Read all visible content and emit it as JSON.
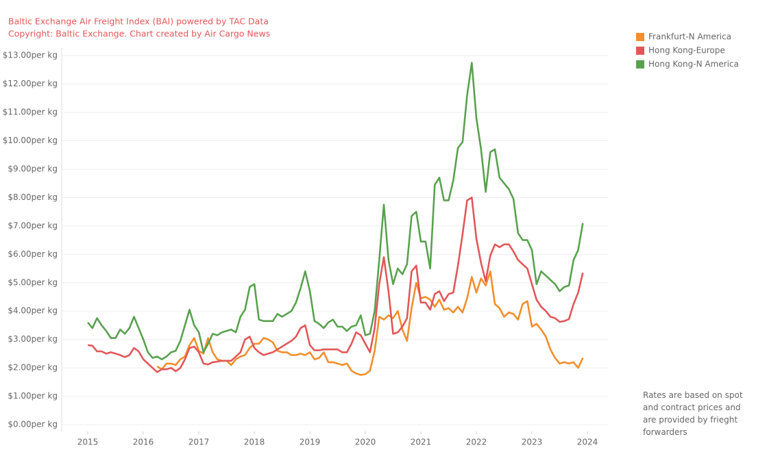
{
  "chart_data": {
    "type": "line",
    "title": "Baltic Exchange Air Freight Index (BAI) powered by TAC Data",
    "subtitle": "Copyright: Baltic Exchange. Chart created by Air Cargo News",
    "note": "Rates are based on spot and contract prices and are provided by frieght forwarders",
    "x": [
      2015,
      2015.083,
      2015.167,
      2015.25,
      2015.333,
      2015.417,
      2015.5,
      2015.583,
      2015.667,
      2015.75,
      2015.833,
      2015.917,
      2016,
      2016.083,
      2016.167,
      2016.25,
      2016.333,
      2016.417,
      2016.5,
      2016.583,
      2016.667,
      2016.75,
      2016.833,
      2016.917,
      2017,
      2017.083,
      2017.167,
      2017.25,
      2017.333,
      2017.417,
      2017.5,
      2017.583,
      2017.667,
      2017.75,
      2017.833,
      2017.917,
      2018,
      2018.083,
      2018.167,
      2018.25,
      2018.333,
      2018.417,
      2018.5,
      2018.583,
      2018.667,
      2018.75,
      2018.833,
      2018.917,
      2019,
      2019.083,
      2019.167,
      2019.25,
      2019.333,
      2019.417,
      2019.5,
      2019.583,
      2019.667,
      2019.75,
      2019.833,
      2019.917,
      2020,
      2020.083,
      2020.167,
      2020.25,
      2020.333,
      2020.417,
      2020.5,
      2020.583,
      2020.667,
      2020.75,
      2020.833,
      2020.917,
      2021,
      2021.083,
      2021.167,
      2021.25,
      2021.333,
      2021.417,
      2021.5,
      2021.583,
      2021.667,
      2021.75,
      2021.833,
      2021.917,
      2022,
      2022.083,
      2022.167,
      2022.25,
      2022.333,
      2022.417,
      2022.5,
      2022.583,
      2022.667,
      2022.75,
      2022.833,
      2022.917,
      2023,
      2023.083,
      2023.167,
      2023.25,
      2023.333,
      2023.417,
      2023.5,
      2023.583,
      2023.667,
      2023.75,
      2023.833,
      2023.917
    ],
    "series": [
      {
        "name": "Frankfurt-N America",
        "color": "#f28e2b",
        "values": [
          null,
          null,
          null,
          null,
          null,
          null,
          null,
          null,
          null,
          null,
          null,
          null,
          null,
          null,
          null,
          2.05,
          1.95,
          2.15,
          2.15,
          2.1,
          2.3,
          2.4,
          2.8,
          3.05,
          2.6,
          2.5,
          3.05,
          2.55,
          2.3,
          2.25,
          2.25,
          2.1,
          2.3,
          2.4,
          2.45,
          2.7,
          2.85,
          2.85,
          3.05,
          3.0,
          2.9,
          2.6,
          2.55,
          2.55,
          2.45,
          2.45,
          2.5,
          2.45,
          2.55,
          2.3,
          2.35,
          2.55,
          2.2,
          2.2,
          2.15,
          2.1,
          2.15,
          1.9,
          1.8,
          1.75,
          1.78,
          1.9,
          2.6,
          3.8,
          3.7,
          3.85,
          3.75,
          4.0,
          3.35,
          2.95,
          4.1,
          5.0,
          4.45,
          4.5,
          4.4,
          4.15,
          4.4,
          4.05,
          4.1,
          3.95,
          4.15,
          3.95,
          4.45,
          5.2,
          4.65,
          5.15,
          4.9,
          5.4,
          4.25,
          4.1,
          3.8,
          3.95,
          3.9,
          3.7,
          4.25,
          4.35,
          3.45,
          3.55,
          3.35,
          3.1,
          2.65,
          2.35,
          2.15,
          2.2,
          2.15,
          2.2,
          2.0,
          2.35
        ]
      },
      {
        "name": "Hong Kong-Europe",
        "color": "#e15759",
        "values": [
          2.8,
          2.78,
          2.58,
          2.58,
          2.5,
          2.55,
          2.5,
          2.45,
          2.38,
          2.45,
          2.7,
          2.58,
          2.3,
          2.15,
          2.0,
          1.85,
          1.95,
          1.95,
          2.0,
          1.88,
          2.0,
          2.3,
          2.7,
          2.75,
          2.55,
          2.15,
          2.12,
          2.2,
          2.22,
          2.25,
          2.25,
          2.25,
          2.4,
          2.55,
          3.0,
          3.1,
          2.7,
          2.55,
          2.45,
          2.5,
          2.55,
          2.65,
          2.75,
          2.85,
          2.95,
          3.1,
          3.4,
          3.5,
          2.8,
          2.62,
          2.62,
          2.65,
          2.65,
          2.65,
          2.65,
          2.55,
          2.55,
          2.85,
          3.25,
          3.15,
          2.85,
          2.55,
          3.4,
          4.95,
          5.9,
          4.7,
          3.2,
          3.25,
          3.45,
          3.75,
          5.4,
          5.6,
          4.3,
          4.3,
          4.05,
          4.6,
          4.7,
          4.35,
          4.6,
          4.65,
          5.6,
          6.7,
          7.9,
          8.0,
          6.55,
          5.7,
          5.05,
          5.95,
          6.35,
          6.25,
          6.35,
          6.35,
          6.1,
          5.8,
          5.65,
          5.5,
          4.95,
          4.4,
          4.15,
          4.0,
          3.8,
          3.75,
          3.62,
          3.65,
          3.72,
          4.25,
          4.65,
          5.35
        ]
      },
      {
        "name": "Hong Kong-N America",
        "color": "#59a14f",
        "values": [
          3.6,
          3.4,
          3.75,
          3.5,
          3.3,
          3.05,
          3.05,
          3.35,
          3.2,
          3.4,
          3.8,
          3.4,
          3.0,
          2.55,
          2.35,
          2.4,
          2.3,
          2.4,
          2.55,
          2.6,
          2.95,
          3.5,
          4.05,
          3.5,
          3.25,
          2.55,
          2.85,
          3.2,
          3.15,
          3.25,
          3.3,
          3.35,
          3.25,
          3.8,
          4.05,
          4.85,
          4.95,
          3.7,
          3.65,
          3.65,
          3.65,
          3.9,
          3.8,
          3.9,
          4.0,
          4.3,
          4.8,
          5.4,
          4.7,
          3.65,
          3.55,
          3.4,
          3.6,
          3.7,
          3.45,
          3.45,
          3.3,
          3.45,
          3.5,
          3.85,
          3.15,
          3.2,
          4.0,
          5.8,
          7.75,
          5.8,
          4.95,
          5.5,
          5.3,
          5.65,
          7.35,
          7.5,
          6.45,
          6.45,
          5.5,
          8.45,
          8.7,
          7.9,
          7.9,
          8.6,
          9.75,
          9.95,
          11.6,
          12.75,
          10.8,
          9.7,
          8.2,
          9.6,
          9.7,
          8.7,
          8.5,
          8.3,
          7.95,
          6.75,
          6.5,
          6.5,
          6.15,
          4.95,
          5.4,
          5.25,
          5.1,
          4.95,
          4.7,
          4.85,
          4.9,
          5.8,
          6.15,
          7.1
        ]
      }
    ],
    "xlim": [
      2014.53,
      2024.37
    ],
    "xticks": [
      2015,
      2016,
      2017,
      2018,
      2019,
      2020,
      2021,
      2022,
      2023,
      2024
    ],
    "ylim": [
      -0.24,
      13.27
    ],
    "yticks": [
      {
        "value": 0,
        "label": "$0.00per kg"
      },
      {
        "value": 1,
        "label": "$1.00per kg"
      },
      {
        "value": 2,
        "label": "$2.00per kg"
      },
      {
        "value": 3,
        "label": "$3.00per kg"
      },
      {
        "value": 4,
        "label": "$4.00per kg"
      },
      {
        "value": 5,
        "label": "$5.00per kg"
      },
      {
        "value": 6,
        "label": "$6.00per kg"
      },
      {
        "value": 7,
        "label": "$7.00per kg"
      },
      {
        "value": 8,
        "label": "$8.00per kg"
      },
      {
        "value": 9,
        "label": "$9.00per kg"
      },
      {
        "value": 10,
        "label": "$10.00per kg"
      },
      {
        "value": 11,
        "label": "$11.00per kg"
      },
      {
        "value": 12,
        "label": "$12.00per kg"
      },
      {
        "value": 13,
        "label": "$13.00per kg"
      }
    ],
    "grid": true,
    "legend": "right"
  }
}
